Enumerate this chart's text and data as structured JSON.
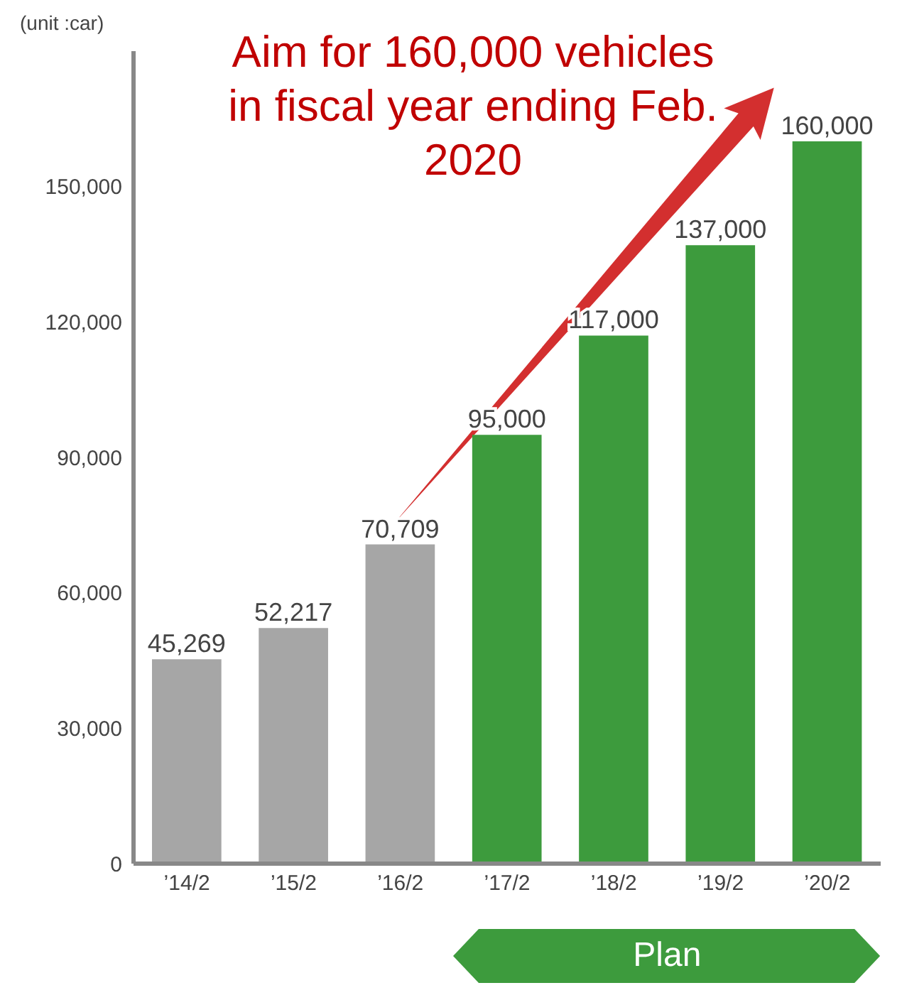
{
  "chart_data": {
    "type": "bar",
    "title": "Aim for 160,000 vehicles in fiscal year ending Feb. 2020",
    "ylabel": "(unit :car)",
    "categories": [
      "’14/2",
      "’15/2",
      "’16/2",
      "’17/2",
      "’18/2",
      "’19/2",
      "’20/2"
    ],
    "values": [
      45269,
      52217,
      70709,
      95000,
      117000,
      137000,
      160000
    ],
    "value_labels": [
      "45,269",
      "52,217",
      "70,709",
      "95,000",
      "117,000",
      "137,000",
      "160,000"
    ],
    "colors": [
      "#a6a6a6",
      "#a6a6a6",
      "#a6a6a6",
      "#3d9b3d",
      "#3d9b3d",
      "#3d9b3d",
      "#3d9b3d"
    ],
    "ylim": [
      0,
      180000
    ],
    "yticks": [
      0,
      {
        "value": 30000,
        "label": "30,000"
      },
      {
        "value": 60000,
        "label": "60,000"
      },
      {
        "value": 90000,
        "label": "90,000"
      },
      {
        "value": 120000,
        "label": "120,000"
      },
      {
        "value": 150000,
        "label": "150,000"
      }
    ],
    "annotations": [
      "Plan"
    ]
  }
}
